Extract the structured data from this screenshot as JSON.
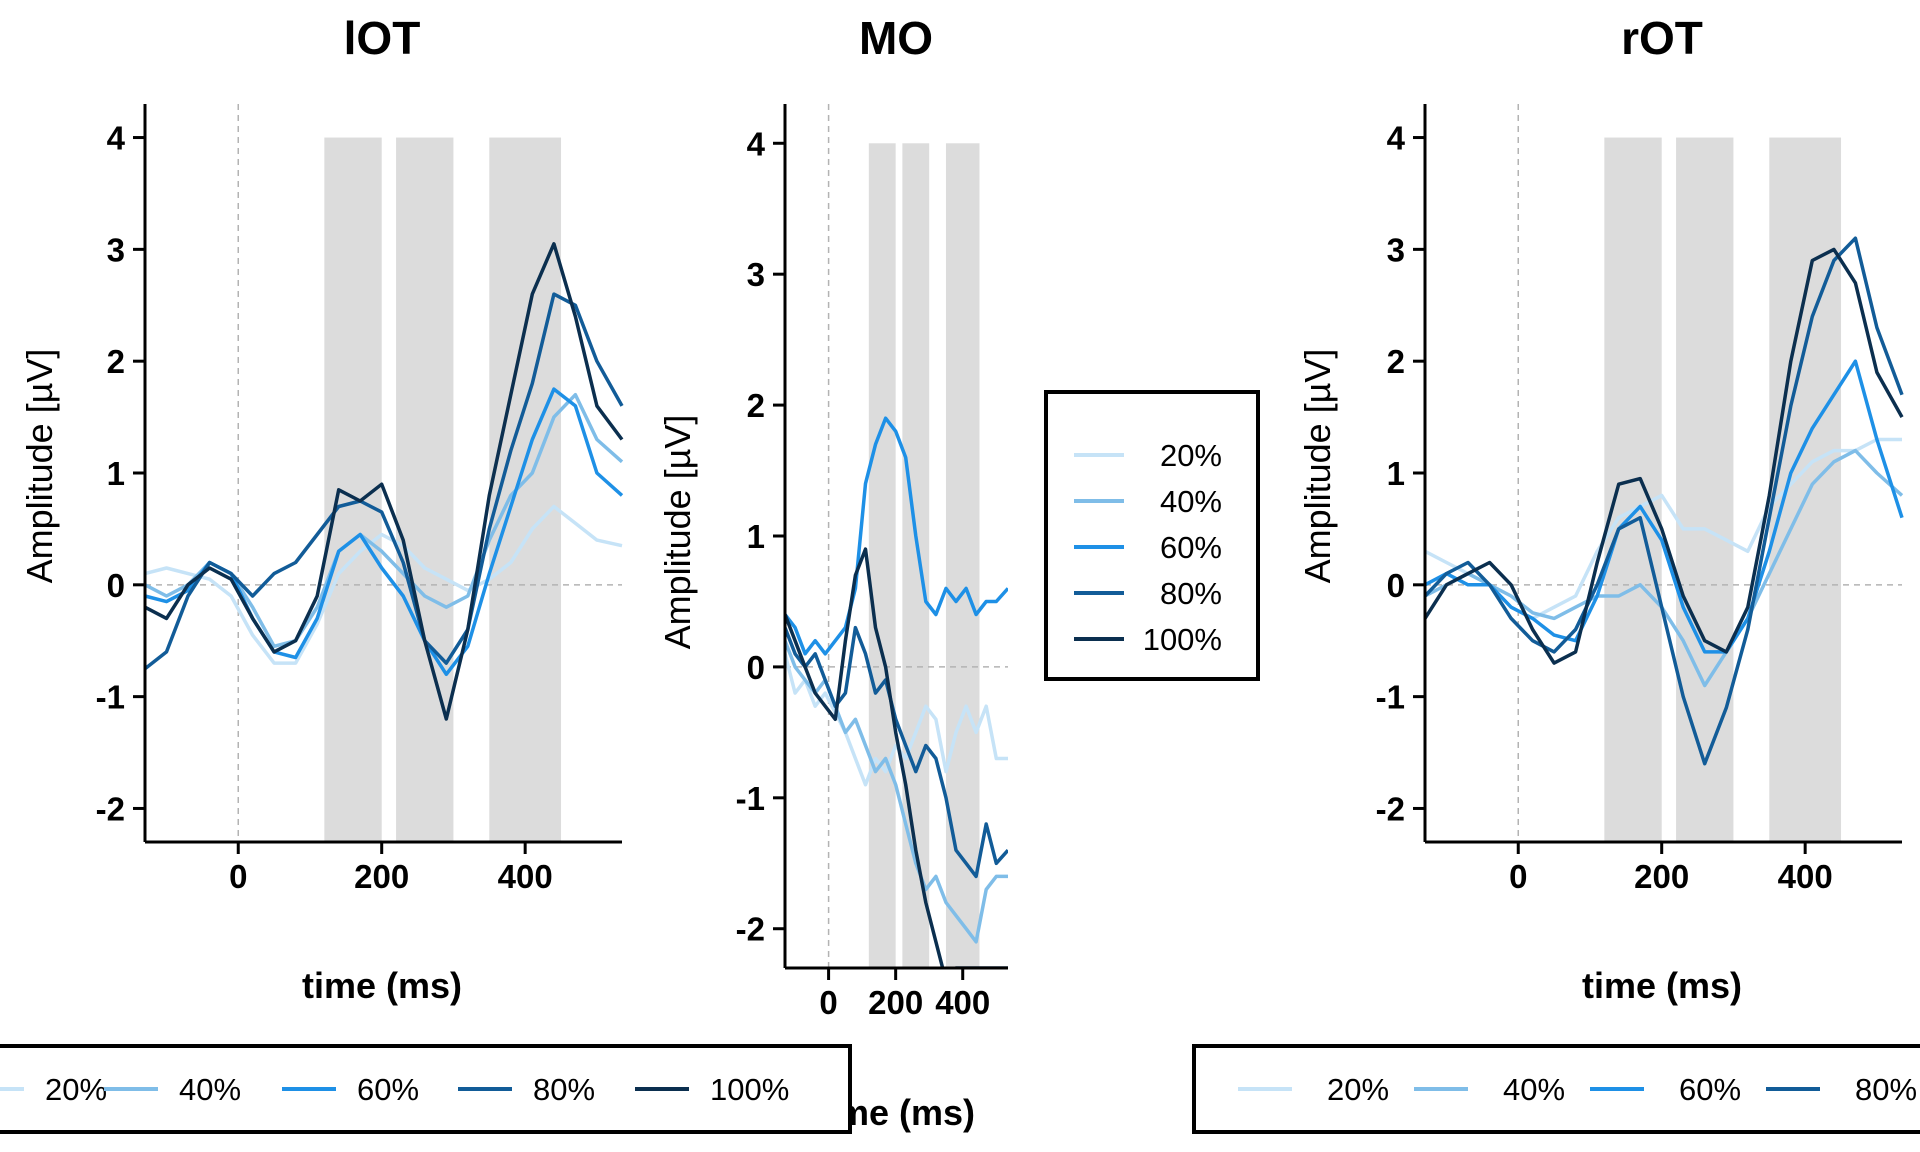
{
  "colors": {
    "20%": "#c6e3f7",
    "40%": "#7fbde8",
    "60%": "#1e90e6",
    "80%": "#125c98",
    "100%": "#0b2f4f",
    "window_fill": "#dcdcdc",
    "reference_line": "#b3b3b3"
  },
  "legends": {
    "left": {
      "entries": [
        "20%",
        "40%",
        "60%",
        "80%",
        "100%"
      ]
    },
    "middle": {
      "entries": [
        "20%",
        "40%",
        "60%",
        "80%",
        "100%"
      ]
    },
    "right": {
      "entries": [
        "20%",
        "40%",
        "60%",
        "80%"
      ]
    }
  },
  "chart_data": [
    {
      "type": "line",
      "title": "lOT",
      "xlabel": "time (ms)",
      "ylabel": "Amplitude [µV]",
      "xlim": [
        -130,
        535
      ],
      "ylim": [
        -2.3,
        4.3
      ],
      "xticks": [
        0,
        200,
        400
      ],
      "yticks": [
        -2,
        -1,
        0,
        1,
        2,
        3,
        4
      ],
      "time_windows": [
        [
          120,
          200
        ],
        [
          220,
          300
        ],
        [
          350,
          450
        ]
      ],
      "series": [
        {
          "name": "20%",
          "x": [
            -130,
            -100,
            -70,
            -40,
            -10,
            20,
            50,
            80,
            110,
            140,
            170,
            200,
            230,
            260,
            290,
            320,
            350,
            380,
            410,
            440,
            470,
            500,
            535
          ],
          "y": [
            0.1,
            0.15,
            0.1,
            0.05,
            -0.1,
            -0.45,
            -0.7,
            -0.7,
            -0.35,
            0.1,
            0.3,
            0.45,
            0.35,
            0.15,
            0.05,
            -0.05,
            0.05,
            0.2,
            0.5,
            0.7,
            0.55,
            0.4,
            0.35
          ]
        },
        {
          "name": "40%",
          "x": [
            -130,
            -100,
            -70,
            -40,
            -10,
            20,
            50,
            80,
            110,
            140,
            170,
            200,
            230,
            260,
            290,
            320,
            350,
            380,
            410,
            440,
            470,
            500,
            535
          ],
          "y": [
            0.0,
            -0.1,
            0.0,
            0.2,
            0.1,
            -0.2,
            -0.55,
            -0.5,
            -0.2,
            0.3,
            0.45,
            0.3,
            0.1,
            -0.1,
            -0.2,
            -0.1,
            0.4,
            0.8,
            1.0,
            1.5,
            1.7,
            1.3,
            1.1
          ]
        },
        {
          "name": "60%",
          "x": [
            -130,
            -100,
            -70,
            -40,
            -10,
            20,
            50,
            80,
            110,
            140,
            170,
            200,
            230,
            260,
            290,
            320,
            350,
            380,
            410,
            440,
            470,
            500,
            535
          ],
          "y": [
            -0.1,
            -0.15,
            -0.05,
            0.2,
            0.1,
            -0.3,
            -0.6,
            -0.65,
            -0.3,
            0.3,
            0.45,
            0.15,
            -0.1,
            -0.5,
            -0.8,
            -0.55,
            0.1,
            0.7,
            1.3,
            1.75,
            1.6,
            1.0,
            0.8
          ]
        },
        {
          "name": "80%",
          "x": [
            -130,
            -100,
            -70,
            -40,
            -10,
            20,
            50,
            80,
            110,
            140,
            170,
            200,
            230,
            260,
            290,
            320,
            350,
            380,
            410,
            440,
            470,
            500,
            535
          ],
          "y": [
            -0.75,
            -0.6,
            -0.1,
            0.2,
            0.1,
            -0.1,
            0.1,
            0.2,
            0.45,
            0.7,
            0.75,
            0.65,
            0.2,
            -0.5,
            -0.7,
            -0.4,
            0.5,
            1.2,
            1.8,
            2.6,
            2.5,
            2.0,
            1.6
          ]
        },
        {
          "name": "100%",
          "x": [
            -130,
            -100,
            -70,
            -40,
            -10,
            20,
            50,
            80,
            110,
            140,
            170,
            200,
            230,
            260,
            290,
            320,
            350,
            380,
            410,
            440,
            470,
            500,
            535
          ],
          "y": [
            -0.2,
            -0.3,
            0.0,
            0.15,
            0.05,
            -0.3,
            -0.6,
            -0.5,
            -0.1,
            0.85,
            0.75,
            0.9,
            0.4,
            -0.5,
            -1.2,
            -0.4,
            0.8,
            1.7,
            2.6,
            3.05,
            2.4,
            1.6,
            1.3
          ]
        }
      ]
    },
    {
      "type": "line",
      "title": "MO",
      "xlabel": "time (ms)",
      "ylabel": "Amplitude [µV]",
      "xlim": [
        -130,
        535
      ],
      "ylim": [
        -2.3,
        4.3
      ],
      "xticks": [
        0,
        200,
        400
      ],
      "xtick_labels": [
        "0",
        "200",
        "400"
      ],
      "yticks": [
        -2,
        -1,
        0,
        1,
        2,
        3,
        4
      ],
      "time_windows": [
        [
          120,
          200
        ],
        [
          220,
          300
        ],
        [
          350,
          450
        ]
      ],
      "series": [
        {
          "name": "20%",
          "x": [
            -130,
            -100,
            -70,
            -40,
            -10,
            20,
            50,
            80,
            110,
            140,
            170,
            200,
            230,
            260,
            290,
            320,
            350,
            380,
            410,
            440,
            470,
            500,
            535
          ],
          "y": [
            0.1,
            -0.2,
            -0.1,
            -0.3,
            -0.2,
            -0.35,
            -0.5,
            -0.7,
            -0.9,
            -0.7,
            -0.8,
            -0.6,
            -0.7,
            -0.5,
            -0.3,
            -0.4,
            -0.8,
            -0.5,
            -0.3,
            -0.5,
            -0.3,
            -0.7,
            -0.7
          ]
        },
        {
          "name": "40%",
          "x": [
            -130,
            -100,
            -70,
            -40,
            -10,
            20,
            50,
            80,
            110,
            140,
            170,
            200,
            230,
            260,
            290,
            320,
            350,
            380,
            410,
            440,
            470,
            500,
            535
          ],
          "y": [
            0.2,
            0.0,
            -0.1,
            -0.2,
            -0.1,
            -0.3,
            -0.5,
            -0.4,
            -0.6,
            -0.8,
            -0.7,
            -0.9,
            -1.2,
            -1.5,
            -1.7,
            -1.6,
            -1.8,
            -1.9,
            -2.0,
            -2.1,
            -1.7,
            -1.6,
            -1.6
          ]
        },
        {
          "name": "60%",
          "x": [
            -130,
            -100,
            -70,
            -40,
            -10,
            20,
            50,
            80,
            110,
            140,
            170,
            200,
            230,
            260,
            290,
            320,
            350,
            380,
            410,
            440,
            470,
            500,
            535
          ],
          "y": [
            0.4,
            0.3,
            0.1,
            0.2,
            0.1,
            0.2,
            0.3,
            0.6,
            1.4,
            1.7,
            1.9,
            1.8,
            1.6,
            1.0,
            0.5,
            0.4,
            0.6,
            0.5,
            0.6,
            0.4,
            0.5,
            0.5,
            0.6
          ]
        },
        {
          "name": "80%",
          "x": [
            -130,
            -100,
            -70,
            -40,
            -10,
            20,
            50,
            80,
            110,
            140,
            170,
            200,
            230,
            260,
            290,
            320,
            350,
            380,
            410,
            440,
            470,
            500,
            535
          ],
          "y": [
            0.3,
            0.1,
            0.0,
            0.1,
            -0.1,
            -0.3,
            -0.2,
            0.3,
            0.1,
            -0.2,
            -0.1,
            -0.4,
            -0.6,
            -0.8,
            -0.6,
            -0.7,
            -1.0,
            -1.4,
            -1.5,
            -1.6,
            -1.2,
            -1.5,
            -1.4
          ]
        },
        {
          "name": "100%",
          "x": [
            -130,
            -100,
            -70,
            -40,
            -10,
            20,
            50,
            80,
            110,
            140,
            170,
            200,
            230,
            260,
            290,
            320,
            350,
            380,
            410,
            440,
            470,
            500,
            535
          ],
          "y": [
            0.4,
            0.2,
            0.0,
            -0.2,
            -0.3,
            -0.4,
            0.2,
            0.7,
            0.9,
            0.3,
            0.0,
            -0.5,
            -0.9,
            -1.4,
            -1.8,
            -2.1,
            -2.4,
            -2.3,
            -2.3,
            -2.3,
            -2.3,
            -2.3,
            -2.3
          ]
        }
      ]
    },
    {
      "type": "line",
      "title": "rOT",
      "xlabel": "time (ms)",
      "ylabel": "Amplitude [µV]",
      "xlim": [
        -130,
        535
      ],
      "ylim": [
        -2.3,
        4.3
      ],
      "xticks": [
        0,
        200,
        400
      ],
      "yticks": [
        -2,
        -1,
        0,
        1,
        2,
        3,
        4
      ],
      "time_windows": [
        [
          120,
          200
        ],
        [
          220,
          300
        ],
        [
          350,
          450
        ]
      ],
      "series": [
        {
          "name": "20%",
          "x": [
            -130,
            -100,
            -70,
            -40,
            -10,
            20,
            50,
            80,
            110,
            140,
            170,
            200,
            230,
            260,
            290,
            320,
            350,
            380,
            410,
            440,
            470,
            500,
            535
          ],
          "y": [
            0.3,
            0.2,
            0.1,
            0.0,
            -0.2,
            -0.3,
            -0.2,
            -0.1,
            0.3,
            0.6,
            0.7,
            0.8,
            0.5,
            0.5,
            0.4,
            0.3,
            0.7,
            0.9,
            1.1,
            1.2,
            1.2,
            1.3,
            1.3
          ]
        },
        {
          "name": "40%",
          "x": [
            -130,
            -100,
            -70,
            -40,
            -10,
            20,
            50,
            80,
            110,
            140,
            170,
            200,
            230,
            260,
            290,
            320,
            350,
            380,
            410,
            440,
            470,
            500,
            535
          ],
          "y": [
            -0.1,
            0.0,
            0.1,
            0.0,
            -0.1,
            -0.25,
            -0.3,
            -0.2,
            -0.1,
            -0.1,
            0.0,
            -0.2,
            -0.5,
            -0.9,
            -0.6,
            -0.3,
            0.1,
            0.5,
            0.9,
            1.1,
            1.2,
            1.0,
            0.8
          ]
        },
        {
          "name": "60%",
          "x": [
            -130,
            -100,
            -70,
            -40,
            -10,
            20,
            50,
            80,
            110,
            140,
            170,
            200,
            230,
            260,
            290,
            320,
            350,
            380,
            410,
            440,
            470,
            500,
            535
          ],
          "y": [
            0.0,
            0.1,
            0.0,
            0.0,
            -0.2,
            -0.3,
            -0.45,
            -0.5,
            -0.1,
            0.5,
            0.7,
            0.4,
            -0.2,
            -0.6,
            -0.6,
            -0.3,
            0.3,
            1.0,
            1.4,
            1.7,
            2.0,
            1.3,
            0.6
          ]
        },
        {
          "name": "80%",
          "x": [
            -130,
            -100,
            -70,
            -40,
            -10,
            20,
            50,
            80,
            110,
            140,
            170,
            200,
            230,
            260,
            290,
            320,
            350,
            380,
            410,
            440,
            470,
            500,
            535
          ],
          "y": [
            -0.1,
            0.1,
            0.2,
            0.0,
            -0.3,
            -0.5,
            -0.6,
            -0.4,
            0.0,
            0.5,
            0.6,
            -0.2,
            -1.0,
            -1.6,
            -1.1,
            -0.4,
            0.6,
            1.6,
            2.4,
            2.9,
            3.1,
            2.3,
            1.7
          ]
        },
        {
          "name": "",
          "x": [
            -130,
            -100,
            -70,
            -40,
            -10,
            20,
            50,
            80,
            110,
            140,
            170,
            200,
            230,
            260,
            290,
            320,
            350,
            380,
            410,
            440,
            470,
            500,
            535
          ],
          "y": [
            -0.3,
            0.0,
            0.1,
            0.2,
            0.0,
            -0.4,
            -0.7,
            -0.6,
            0.2,
            0.9,
            0.95,
            0.5,
            -0.1,
            -0.5,
            -0.6,
            -0.2,
            0.8,
            2.0,
            2.9,
            3.0,
            2.7,
            1.9,
            1.5
          ]
        }
      ]
    }
  ]
}
